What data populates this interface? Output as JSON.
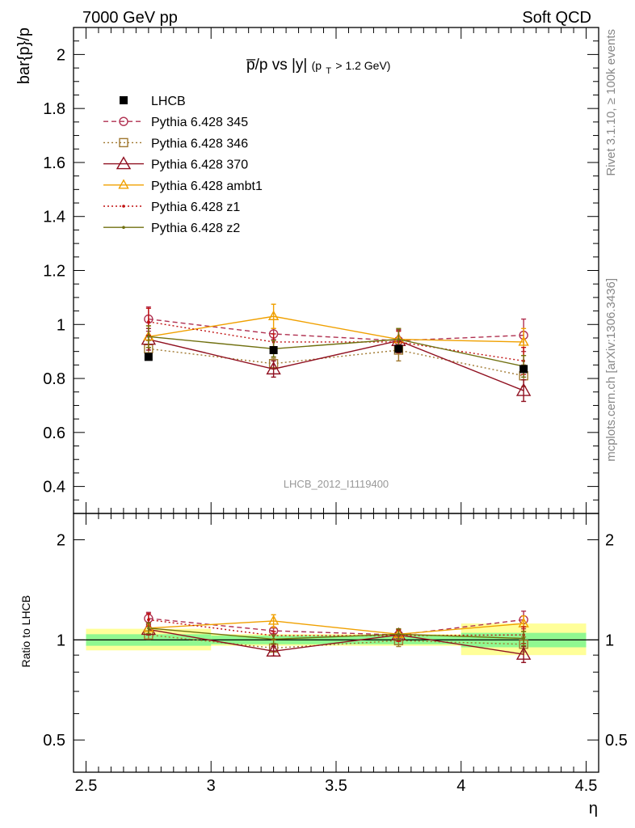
{
  "header": {
    "left": "7000 GeV pp",
    "right": "Soft QCD"
  },
  "side_labels": {
    "rivet": "Rivet 3.1.10, ≥ 100k events",
    "mcplots": "mcplots.cern.ch [arXiv:1306.3436]"
  },
  "plot_title": {
    "main": "p̅/p vs |y|",
    "sub_open": "(p",
    "sub_index": "T",
    "sub_close": " > 1.2 GeV)"
  },
  "ylabel_main": "bar{p}/p",
  "ylabel_ratio": "Ratio to LHCB",
  "xlabel": "η",
  "watermark": "LHCB_2012_I1119400",
  "colors": {
    "data": "#000000",
    "p345": "#b03050",
    "p346": "#a07830",
    "p370": "#901020",
    "ambt1": "#f0a000",
    "z1": "#c01010",
    "z2": "#707010",
    "band_inner": "#90f890",
    "band_outer": "#ffff99"
  },
  "chart_data": [
    {
      "type": "scatter",
      "panel": "main",
      "x_edges": [
        2.5,
        3.0,
        3.5,
        4.0,
        4.5
      ],
      "x": [
        2.75,
        3.25,
        3.75,
        4.25
      ],
      "xlim": [
        2.45,
        4.55
      ],
      "ylim": [
        0.3,
        2.1
      ],
      "y_ticks": [
        "0.4",
        "0.6",
        "0.8",
        "1",
        "1.2",
        "1.4",
        "1.6",
        "1.8",
        "2"
      ],
      "grid": false,
      "legend_position": "top-left",
      "series": [
        {
          "name": "LHCB",
          "key": "data",
          "values": [
            0.88,
            0.905,
            0.91,
            0.835
          ],
          "errors": [
            0.01,
            0.01,
            0.01,
            0.01
          ],
          "marker": "filled-square",
          "line": "none"
        },
        {
          "name": "Pythia 6.428 345",
          "key": "p345",
          "values": [
            1.02,
            0.965,
            0.94,
            0.96
          ],
          "errors": [
            0.045,
            0.02,
            0.04,
            0.06
          ],
          "marker": "open-circle",
          "line": "dashed"
        },
        {
          "name": "Pythia 6.428 346",
          "key": "p346",
          "values": [
            0.91,
            0.855,
            0.905,
            0.81
          ],
          "errors": [
            0.03,
            0.02,
            0.04,
            0.04
          ],
          "marker": "open-square",
          "line": "dotted"
        },
        {
          "name": "Pythia 6.428 370",
          "key": "p370",
          "values": [
            0.945,
            0.835,
            0.94,
            0.755
          ],
          "errors": [
            0.04,
            0.03,
            0.04,
            0.04
          ],
          "marker": "open-triangle",
          "line": "solid"
        },
        {
          "name": "Pythia 6.428 ambt1",
          "key": "ambt1",
          "values": [
            0.955,
            1.03,
            0.945,
            0.935
          ],
          "errors": [
            0.04,
            0.045,
            0.04,
            0.05
          ],
          "marker": "open-triangle-small",
          "line": "solid"
        },
        {
          "name": "Pythia 6.428 z1",
          "key": "z1",
          "values": [
            1.01,
            0.935,
            0.935,
            0.865
          ],
          "errors": [
            0.05,
            0.03,
            0.04,
            0.05
          ],
          "marker": "dot",
          "line": "dotted"
        },
        {
          "name": "Pythia 6.428 z2",
          "key": "z2",
          "values": [
            0.955,
            0.91,
            0.945,
            0.845
          ],
          "errors": [
            0.04,
            0.03,
            0.04,
            0.04
          ],
          "marker": "dot",
          "line": "solid"
        }
      ]
    },
    {
      "type": "scatter",
      "panel": "ratio",
      "x_edges": [
        2.5,
        3.0,
        3.5,
        4.0,
        4.5
      ],
      "x": [
        2.75,
        3.25,
        3.75,
        4.25
      ],
      "xlim": [
        2.45,
        4.55
      ],
      "ylim": [
        0.4,
        2.4
      ],
      "scale": "log",
      "x_ticks": [
        "2.5",
        "3",
        "3.5",
        "4",
        "4.5"
      ],
      "y_ticks": [
        "0.5",
        "1",
        "2"
      ],
      "band_inner": [
        [
          0.96,
          1.04
        ],
        [
          0.97,
          1.03
        ],
        [
          0.97,
          1.03
        ],
        [
          0.95,
          1.05
        ]
      ],
      "band_outer": [
        [
          0.93,
          1.08
        ],
        [
          0.96,
          1.04
        ],
        [
          0.96,
          1.04
        ],
        [
          0.9,
          1.12
        ]
      ],
      "series": [
        {
          "key": "p345",
          "values": [
            1.16,
            1.065,
            1.035,
            1.15
          ],
          "errors": [
            0.05,
            0.02,
            0.04,
            0.07
          ]
        },
        {
          "key": "p346",
          "values": [
            1.035,
            0.945,
            0.995,
            0.97
          ],
          "errors": [
            0.03,
            0.02,
            0.04,
            0.05
          ]
        },
        {
          "key": "p370",
          "values": [
            1.075,
            0.925,
            1.035,
            0.905
          ],
          "errors": [
            0.04,
            0.03,
            0.04,
            0.05
          ]
        },
        {
          "key": "ambt1",
          "values": [
            1.085,
            1.14,
            1.04,
            1.12
          ],
          "errors": [
            0.04,
            0.05,
            0.04,
            0.06
          ]
        },
        {
          "key": "z1",
          "values": [
            1.15,
            1.03,
            1.03,
            1.035
          ],
          "errors": [
            0.05,
            0.03,
            0.04,
            0.06
          ]
        },
        {
          "key": "z2",
          "values": [
            1.085,
            1.005,
            1.04,
            1.01
          ],
          "errors": [
            0.04,
            0.03,
            0.04,
            0.05
          ]
        }
      ]
    }
  ]
}
